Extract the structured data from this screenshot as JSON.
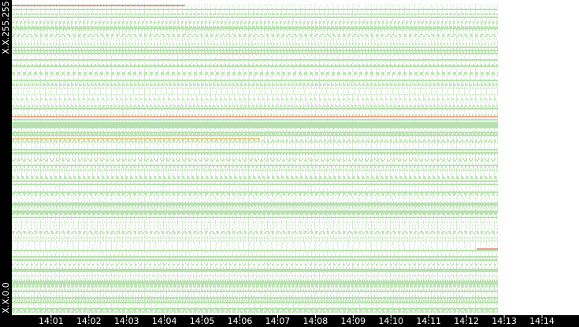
{
  "chart_data": {
    "type": "heatmap",
    "y_labels": [
      "X.X.255.255",
      "X.X.0.0"
    ],
    "xlim": [
      -0.04,
      14.98
    ],
    "xticks": [
      {
        "value": 1,
        "label": "14:01"
      },
      {
        "value": 2,
        "label": "14:02"
      },
      {
        "value": 3,
        "label": "14:03"
      },
      {
        "value": 4,
        "label": "14:04"
      },
      {
        "value": 5,
        "label": "14:05"
      },
      {
        "value": 6,
        "label": "14:06"
      },
      {
        "value": 7,
        "label": "14:07"
      },
      {
        "value": 8,
        "label": "14:08"
      },
      {
        "value": 9,
        "label": "14:09"
      },
      {
        "value": 10,
        "label": "14:10"
      },
      {
        "value": 11,
        "label": "14:11"
      },
      {
        "value": 12,
        "label": "14:12"
      },
      {
        "value": 13,
        "label": "14:13"
      },
      {
        "value": 14,
        "label": "14:14"
      }
    ],
    "color": "#6cbf5a"
  }
}
